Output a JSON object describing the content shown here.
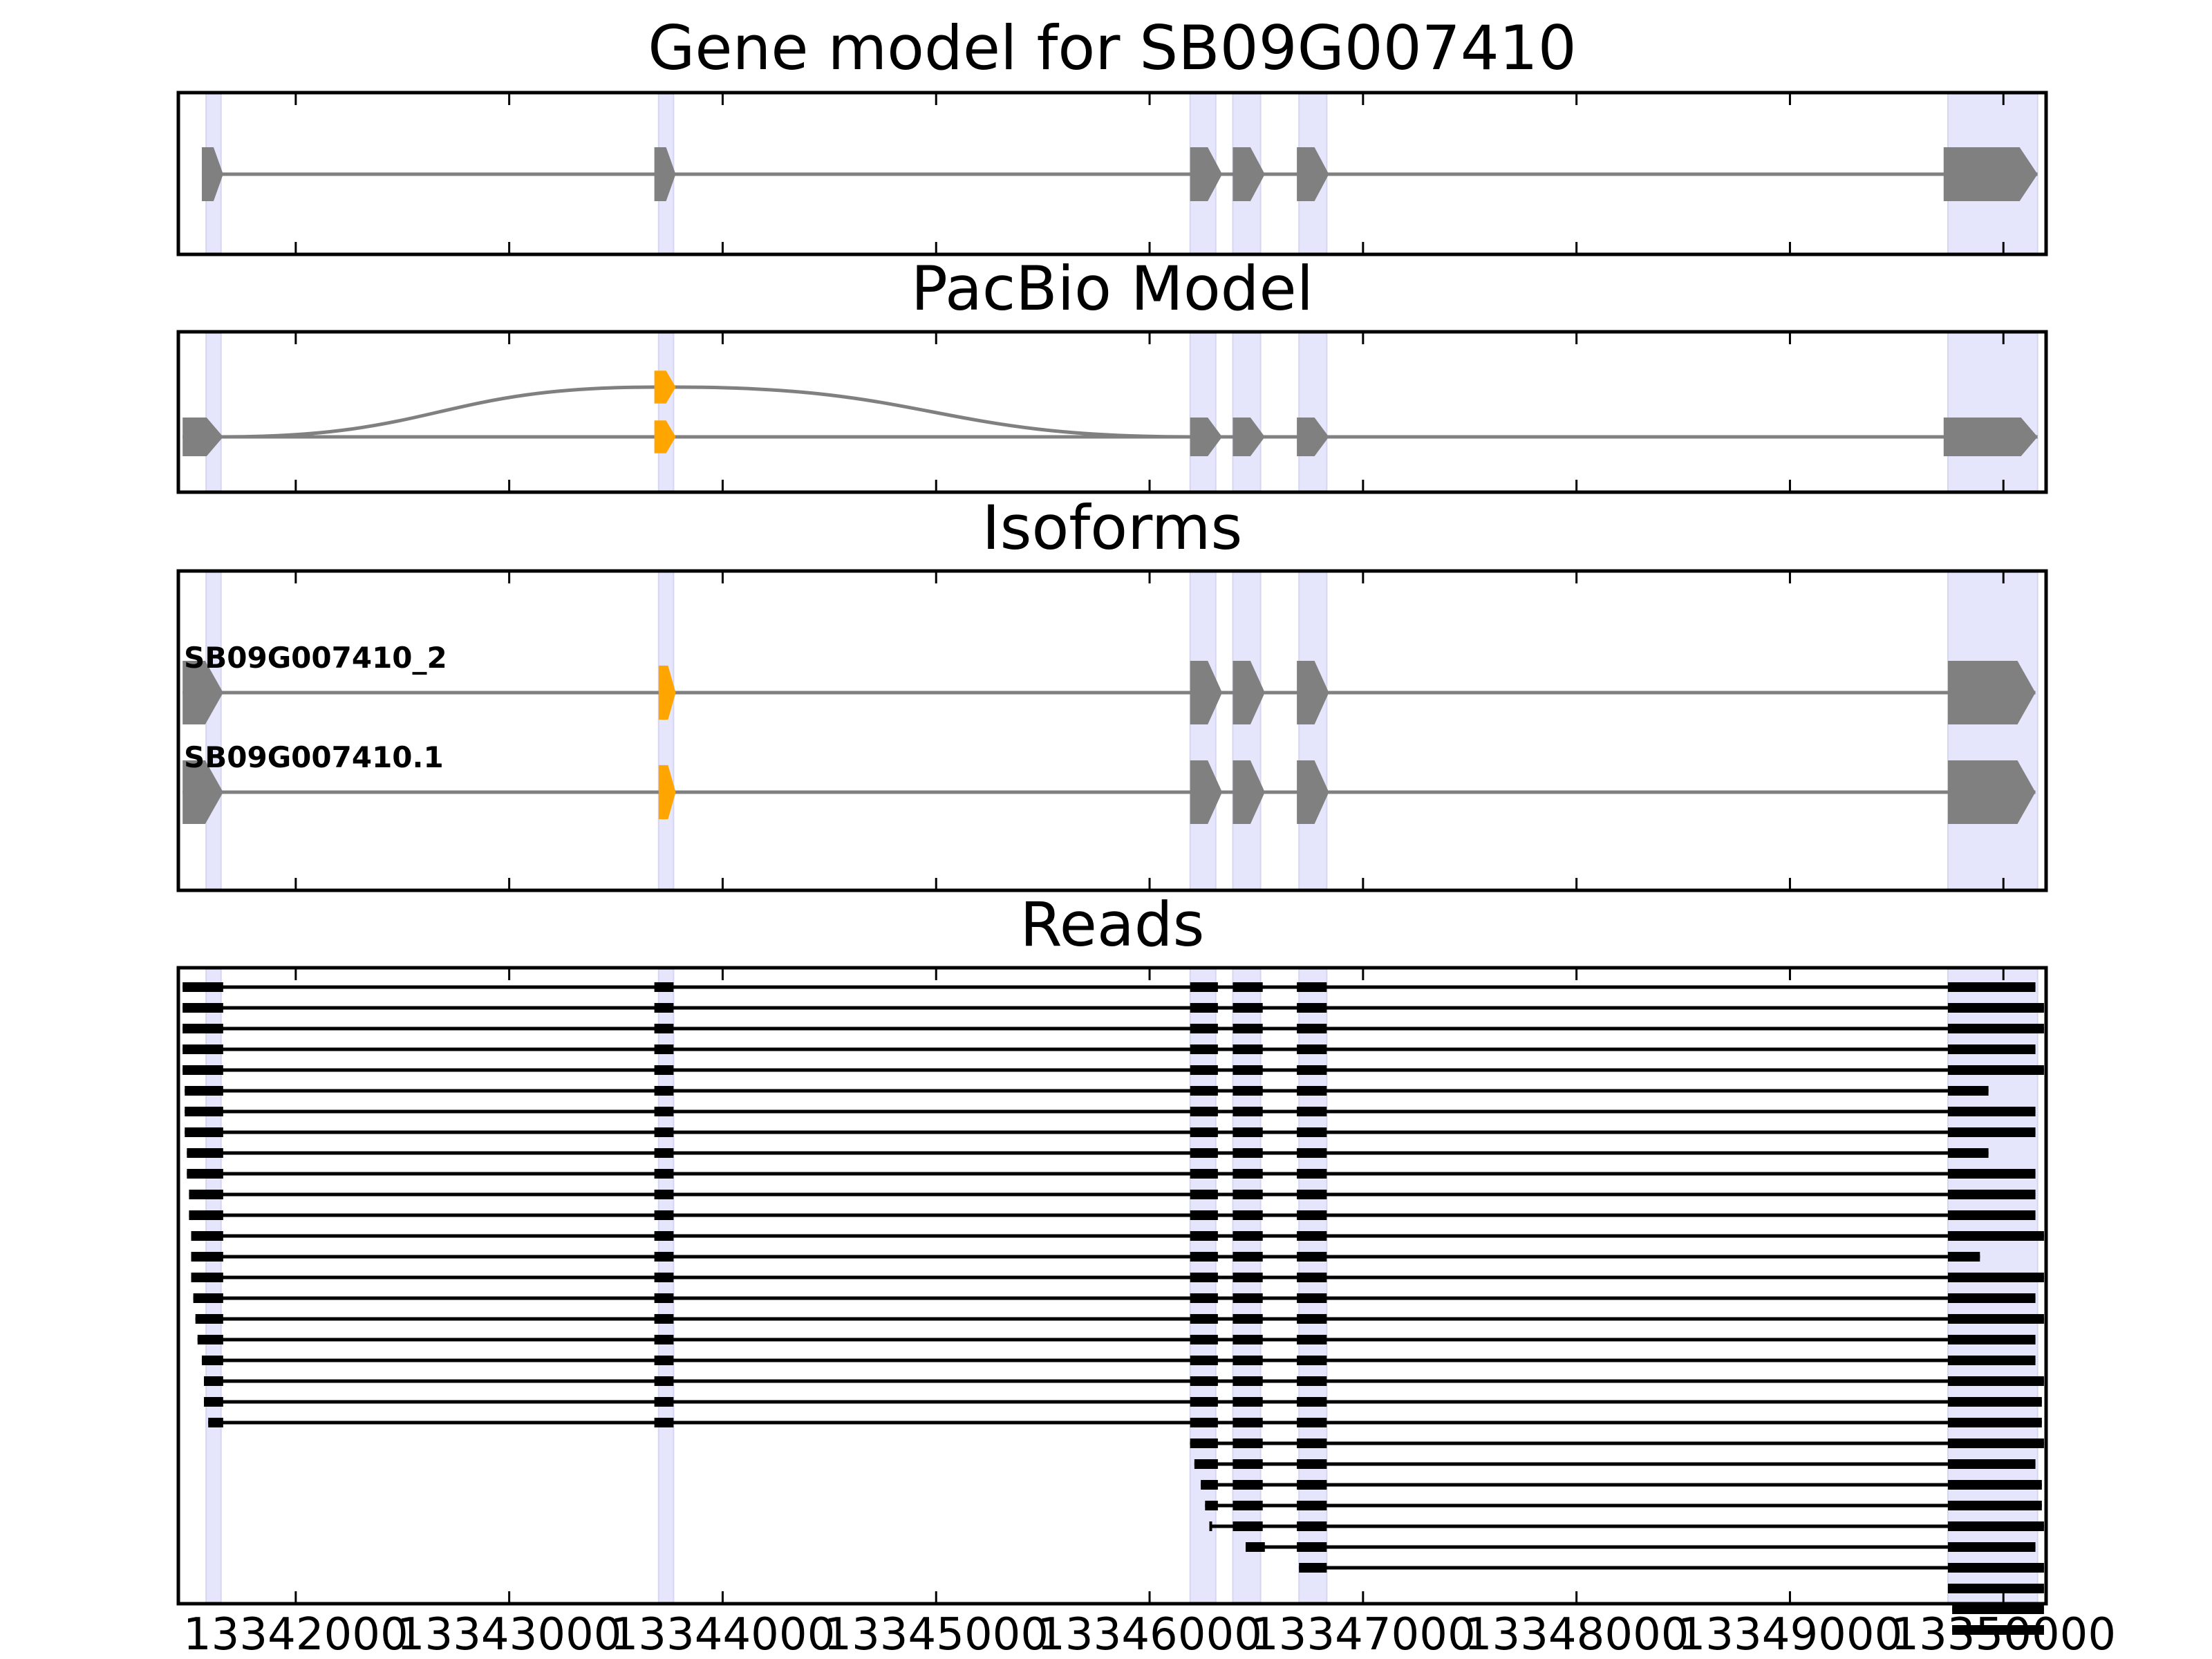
{
  "chart_data": {
    "type": "gene-structure",
    "xlim": [
      13341450,
      13350200
    ],
    "x_ticks": [
      13342000,
      13343000,
      13344000,
      13345000,
      13346000,
      13347000,
      13348000,
      13349000,
      13350000
    ],
    "x_tick_labels": [
      "13342000",
      "13343000",
      "13344000",
      "13345000",
      "13346000",
      "13347000",
      "13348000",
      "13349000",
      "13350000"
    ],
    "highlight_color": "#e5e5fb",
    "exon_color": "#808080",
    "alt_exon_color": "#FFA500",
    "read_color": "#000000",
    "highlights": [
      [
        13341580,
        13341650
      ],
      [
        13343700,
        13343770
      ],
      [
        13346190,
        13346310
      ],
      [
        13346390,
        13346520
      ],
      [
        13346700,
        13346830
      ],
      [
        13349740,
        13350160
      ]
    ],
    "panels": [
      {
        "title": "Gene model for SB09G007410",
        "models": [
          {
            "label": "",
            "exons": [
              [
                13341560,
                13341660
              ],
              [
                13343680,
                13343780
              ],
              [
                13346190,
                13346340
              ],
              [
                13346390,
                13346540
              ],
              [
                13346690,
                13346840
              ],
              [
                13349720,
                13350160
              ]
            ],
            "alt_exons": [],
            "arc": null
          }
        ]
      },
      {
        "title": "PacBio Model",
        "models": [
          {
            "label": "",
            "exons": [
              [
                13341470,
                13341660
              ],
              [
                13346190,
                13346340
              ],
              [
                13346390,
                13346540
              ],
              [
                13346690,
                13346840
              ],
              [
                13349720,
                13350160
              ]
            ],
            "alt_exons": [
              [
                13343680,
                13343780
              ]
            ],
            "arc": {
              "from": 13341660,
              "to": 13346190,
              "via": [
                13343680,
                13343780
              ]
            }
          }
        ]
      },
      {
        "title": "Isoforms",
        "models": [
          {
            "label": "SB09G007410_2",
            "exons": [
              [
                13341470,
                13341660
              ],
              [
                13346190,
                13346340
              ],
              [
                13346390,
                13346540
              ],
              [
                13346690,
                13346840
              ],
              [
                13349740,
                13350150
              ]
            ],
            "alt_exons": [
              [
                13343700,
                13343780
              ]
            ],
            "arc": null
          },
          {
            "label": "SB09G007410.1",
            "exons": [
              [
                13341470,
                13341660
              ],
              [
                13346190,
                13346340
              ],
              [
                13346390,
                13346540
              ],
              [
                13346690,
                13346840
              ],
              [
                13349740,
                13350150
              ]
            ],
            "alt_exons": [
              [
                13343700,
                13343780
              ]
            ],
            "arc": null
          }
        ]
      },
      {
        "title": "Reads",
        "reads": [
          {
            "exons": [
              [
                13341470,
                13341660
              ],
              [
                13343680,
                13343770
              ],
              [
                13346190,
                13346320
              ],
              [
                13346390,
                13346530
              ],
              [
                13346690,
                13346830
              ],
              [
                13349740,
                13350150
              ]
            ]
          },
          {
            "exons": [
              [
                13341470,
                13341660
              ],
              [
                13343680,
                13343770
              ],
              [
                13346190,
                13346320
              ],
              [
                13346390,
                13346530
              ],
              [
                13346690,
                13346830
              ],
              [
                13349740,
                13350190
              ]
            ]
          },
          {
            "exons": [
              [
                13341470,
                13341660
              ],
              [
                13343680,
                13343770
              ],
              [
                13346190,
                13346320
              ],
              [
                13346390,
                13346530
              ],
              [
                13346690,
                13346830
              ],
              [
                13349740,
                13350190
              ]
            ]
          },
          {
            "exons": [
              [
                13341470,
                13341660
              ],
              [
                13343680,
                13343770
              ],
              [
                13346190,
                13346320
              ],
              [
                13346390,
                13346530
              ],
              [
                13346690,
                13346830
              ],
              [
                13349740,
                13350150
              ]
            ]
          },
          {
            "exons": [
              [
                13341470,
                13341660
              ],
              [
                13343680,
                13343770
              ],
              [
                13346190,
                13346320
              ],
              [
                13346390,
                13346530
              ],
              [
                13346690,
                13346830
              ],
              [
                13349740,
                13350190
              ]
            ]
          },
          {
            "exons": [
              [
                13341480,
                13341660
              ],
              [
                13343680,
                13343770
              ],
              [
                13346190,
                13346320
              ],
              [
                13346390,
                13346530
              ],
              [
                13346690,
                13346830
              ],
              [
                13349740,
                13349930
              ]
            ]
          },
          {
            "exons": [
              [
                13341480,
                13341660
              ],
              [
                13343680,
                13343770
              ],
              [
                13346190,
                13346320
              ],
              [
                13346390,
                13346530
              ],
              [
                13346690,
                13346830
              ],
              [
                13349740,
                13350150
              ]
            ]
          },
          {
            "exons": [
              [
                13341480,
                13341660
              ],
              [
                13343680,
                13343770
              ],
              [
                13346190,
                13346320
              ],
              [
                13346390,
                13346530
              ],
              [
                13346690,
                13346830
              ],
              [
                13349740,
                13350150
              ]
            ]
          },
          {
            "exons": [
              [
                13341490,
                13341660
              ],
              [
                13343680,
                13343770
              ],
              [
                13346190,
                13346320
              ],
              [
                13346390,
                13346530
              ],
              [
                13346690,
                13346830
              ],
              [
                13349740,
                13349930
              ]
            ]
          },
          {
            "exons": [
              [
                13341490,
                13341660
              ],
              [
                13343680,
                13343770
              ],
              [
                13346190,
                13346320
              ],
              [
                13346390,
                13346530
              ],
              [
                13346690,
                13346830
              ],
              [
                13349740,
                13350150
              ]
            ]
          },
          {
            "exons": [
              [
                13341500,
                13341660
              ],
              [
                13343680,
                13343770
              ],
              [
                13346190,
                13346320
              ],
              [
                13346390,
                13346530
              ],
              [
                13346690,
                13346830
              ],
              [
                13349740,
                13350150
              ]
            ]
          },
          {
            "exons": [
              [
                13341500,
                13341660
              ],
              [
                13343680,
                13343770
              ],
              [
                13346190,
                13346320
              ],
              [
                13346390,
                13346530
              ],
              [
                13346690,
                13346830
              ],
              [
                13349740,
                13350150
              ]
            ]
          },
          {
            "exons": [
              [
                13341510,
                13341660
              ],
              [
                13343680,
                13343770
              ],
              [
                13346190,
                13346320
              ],
              [
                13346390,
                13346530
              ],
              [
                13346690,
                13346830
              ],
              [
                13349740,
                13350190
              ]
            ]
          },
          {
            "exons": [
              [
                13341510,
                13341660
              ],
              [
                13343680,
                13343770
              ],
              [
                13346190,
                13346320
              ],
              [
                13346390,
                13346530
              ],
              [
                13346690,
                13346830
              ],
              [
                13349740,
                13349890
              ]
            ]
          },
          {
            "exons": [
              [
                13341510,
                13341660
              ],
              [
                13343680,
                13343770
              ],
              [
                13346190,
                13346320
              ],
              [
                13346390,
                13346530
              ],
              [
                13346690,
                13346830
              ],
              [
                13349740,
                13350190
              ]
            ]
          },
          {
            "exons": [
              [
                13341520,
                13341660
              ],
              [
                13343680,
                13343770
              ],
              [
                13346190,
                13346320
              ],
              [
                13346390,
                13346530
              ],
              [
                13346690,
                13346830
              ],
              [
                13349740,
                13350150
              ]
            ]
          },
          {
            "exons": [
              [
                13341530,
                13341660
              ],
              [
                13343680,
                13343770
              ],
              [
                13346190,
                13346320
              ],
              [
                13346390,
                13346530
              ],
              [
                13346690,
                13346830
              ],
              [
                13349740,
                13350190
              ]
            ]
          },
          {
            "exons": [
              [
                13341540,
                13341660
              ],
              [
                13343680,
                13343770
              ],
              [
                13346190,
                13346320
              ],
              [
                13346390,
                13346530
              ],
              [
                13346690,
                13346830
              ],
              [
                13349740,
                13350150
              ]
            ]
          },
          {
            "exons": [
              [
                13341560,
                13341660
              ],
              [
                13343680,
                13343770
              ],
              [
                13346190,
                13346320
              ],
              [
                13346390,
                13346530
              ],
              [
                13346690,
                13346830
              ],
              [
                13349740,
                13350150
              ]
            ]
          },
          {
            "exons": [
              [
                13341570,
                13341660
              ],
              [
                13343680,
                13343770
              ],
              [
                13346190,
                13346320
              ],
              [
                13346390,
                13346530
              ],
              [
                13346690,
                13346830
              ],
              [
                13349740,
                13350190
              ]
            ]
          },
          {
            "exons": [
              [
                13341570,
                13341660
              ],
              [
                13343680,
                13343770
              ],
              [
                13346190,
                13346320
              ],
              [
                13346390,
                13346530
              ],
              [
                13346690,
                13346830
              ],
              [
                13349740,
                13350180
              ]
            ]
          },
          {
            "exons": [
              [
                13341590,
                13341660
              ],
              [
                13343680,
                13343770
              ],
              [
                13346190,
                13346320
              ],
              [
                13346390,
                13346530
              ],
              [
                13346690,
                13346830
              ],
              [
                13349740,
                13350180
              ]
            ]
          },
          {
            "exons": [
              [
                13346190,
                13346320
              ],
              [
                13346390,
                13346530
              ],
              [
                13346690,
                13346830
              ],
              [
                13349740,
                13350190
              ]
            ]
          },
          {
            "exons": [
              [
                13346210,
                13346320
              ],
              [
                13346390,
                13346530
              ],
              [
                13346690,
                13346830
              ],
              [
                13349740,
                13350150
              ]
            ]
          },
          {
            "exons": [
              [
                13346240,
                13346320
              ],
              [
                13346390,
                13346530
              ],
              [
                13346690,
                13346830
              ],
              [
                13349740,
                13350180
              ]
            ]
          },
          {
            "exons": [
              [
                13346260,
                13346320
              ],
              [
                13346390,
                13346530
              ],
              [
                13346690,
                13346830
              ],
              [
                13349740,
                13350180
              ]
            ]
          },
          {
            "exons": [
              [
                13346280,
                13346290
              ],
              [
                13346390,
                13346530
              ],
              [
                13346690,
                13346830
              ],
              [
                13349740,
                13350190
              ]
            ]
          },
          {
            "exons": [
              [
                13346450,
                13346540
              ],
              [
                13346690,
                13346830
              ],
              [
                13349740,
                13350150
              ]
            ]
          },
          {
            "exons": [
              [
                13346700,
                13346830
              ],
              [
                13349740,
                13350190
              ]
            ]
          },
          {
            "exons": [
              [
                13349740,
                13350190
              ]
            ]
          },
          {
            "exons": [
              [
                13349760,
                13350190
              ]
            ]
          },
          {
            "exons": [
              [
                13349760,
                13350190
              ]
            ]
          }
        ]
      }
    ]
  }
}
